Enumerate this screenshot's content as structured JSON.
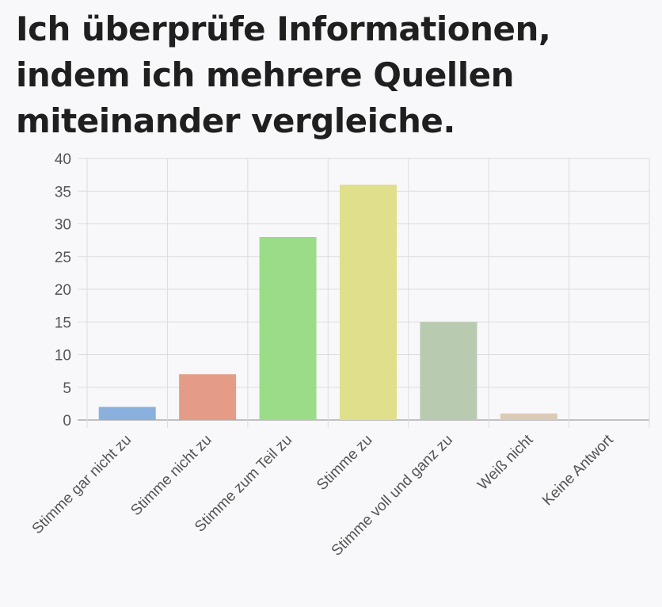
{
  "title": "Ich überprüfe Informationen, indem ich mehrere Quellen miteinander vergleiche.",
  "chart_data": {
    "type": "bar",
    "categories": [
      "Stimme gar nicht zu",
      "Stimme nicht zu",
      "Stimme zum Teil zu",
      "Stimme zu",
      "Stimme voll und ganz zu",
      "Weiß nicht",
      "Keine Antwort"
    ],
    "values": [
      2,
      7,
      28,
      36,
      15,
      1,
      0
    ],
    "colors": [
      "#8ab0dd",
      "#e49c87",
      "#9bdc89",
      "#e0e08c",
      "#b8cbb0",
      "#dccbb6",
      "#cccccc"
    ],
    "ylim": [
      0,
      40
    ],
    "yticks": [
      0,
      5,
      10,
      15,
      20,
      25,
      30,
      35,
      40
    ],
    "grid": true,
    "xlabel": "",
    "ylabel": ""
  }
}
